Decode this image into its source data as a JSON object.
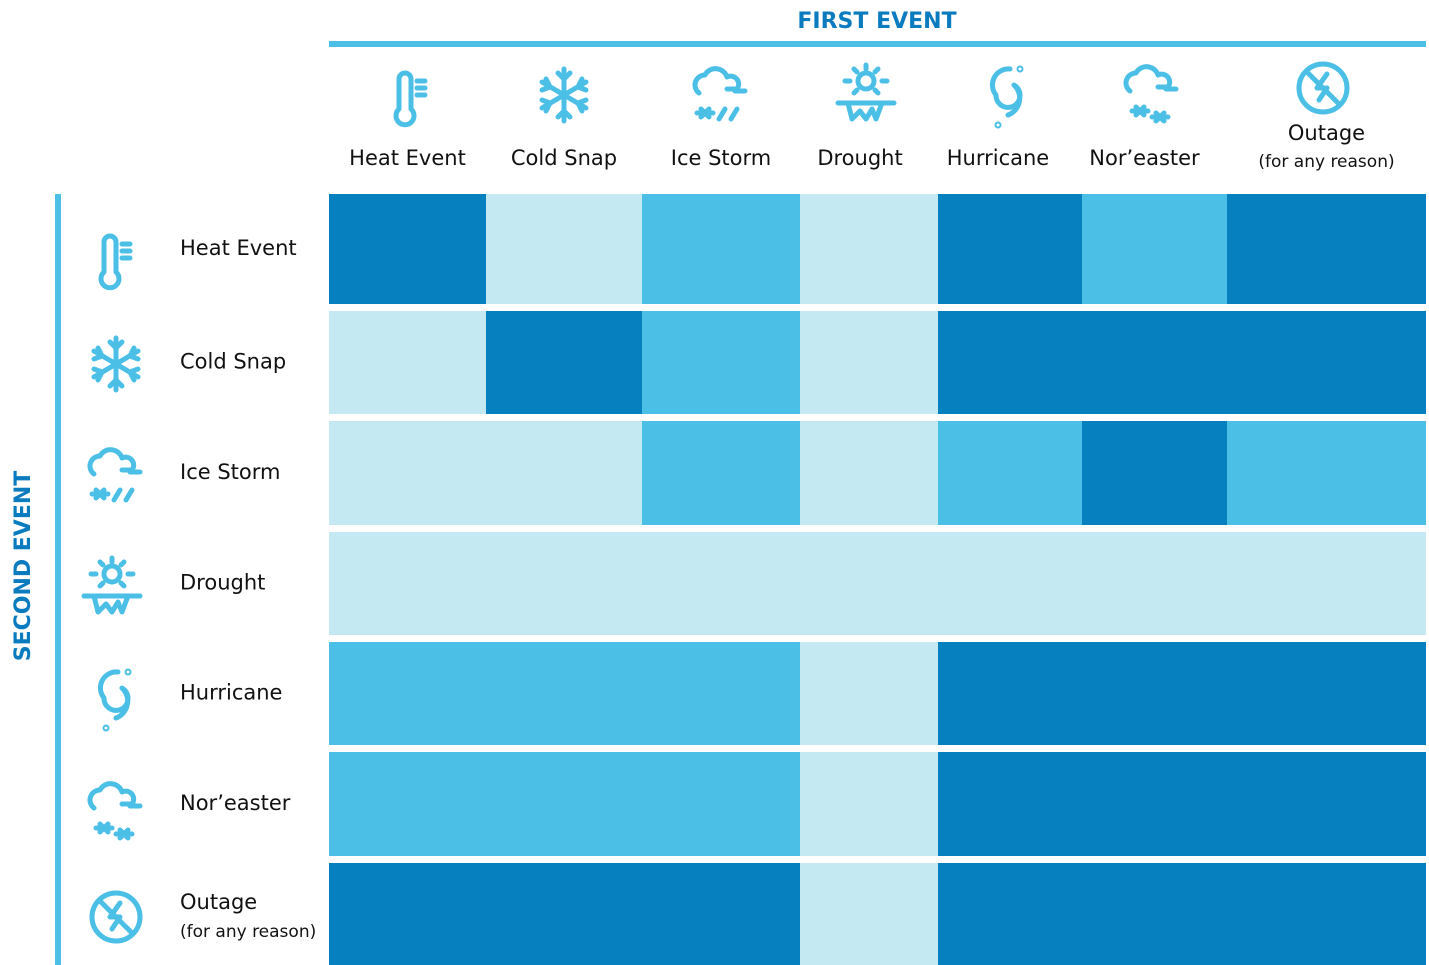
{
  "header": {
    "first_event": "FIRST EVENT",
    "second_event": "SECOND EVENT"
  },
  "events": [
    {
      "label": "Heat Event"
    },
    {
      "label": "Cold Snap"
    },
    {
      "label": "Ice Storm"
    },
    {
      "label": "Drought"
    },
    {
      "label": "Hurricane"
    },
    {
      "label": "Nor’easter"
    },
    {
      "label": "Outage",
      "note": "(for any reason)"
    }
  ],
  "matrix": [
    [
      "#0780c0",
      "#c5e9f2",
      "#4bbfe6",
      "#c5e9f2",
      "#0780c0",
      "#4bbfe6",
      "#0780c0"
    ],
    [
      "#c5e9f2",
      "#0780c0",
      "#4bbfe6",
      "#c5e9f2",
      "#0780c0",
      "#0780c0",
      "#0780c0"
    ],
    [
      "#c5e9f2",
      "#c5e9f2",
      "#4bbfe6",
      "#c5e9f2",
      "#4bbfe6",
      "#0780c0",
      "#4bbfe6"
    ],
    [
      "#c5e9f2",
      "#c5e9f2",
      "#c5e9f2",
      "#c5e9f2",
      "#c5e9f2",
      "#c5e9f2",
      "#c5e9f2"
    ],
    [
      "#4bbfe6",
      "#4bbfe6",
      "#4bbfe6",
      "#c5e9f2",
      "#0780c0",
      "#0780c0",
      "#0780c0"
    ],
    [
      "#4bbfe6",
      "#4bbfe6",
      "#4bbfe6",
      "#c5e9f2",
      "#0780c0",
      "#0780c0",
      "#0780c0"
    ],
    [
      "#0780c0",
      "#0780c0",
      "#0780c0",
      "#c5e9f2",
      "#0780c0",
      "#0780c0",
      "#0780c0"
    ]
  ]
}
